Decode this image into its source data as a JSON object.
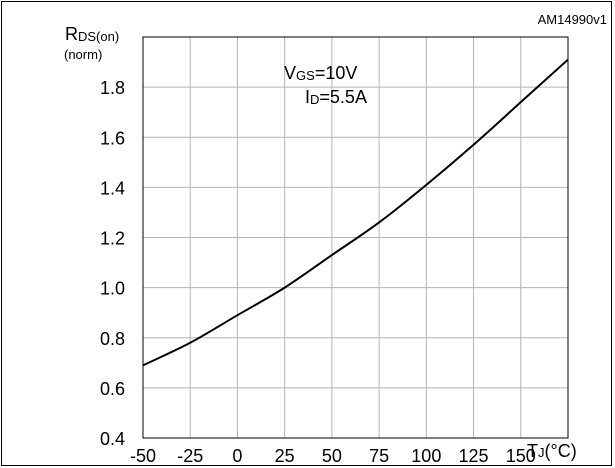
{
  "figure_code": "AM14990v1",
  "chart_data": {
    "type": "line",
    "ylabel_main": "R",
    "ylabel_sub": "DS(on)",
    "ylabel_unit": "(norm)",
    "xlabel_main": "T",
    "xlabel_sub": "J",
    "xlabel_unit": "(°C)",
    "annotation": {
      "vgs_main": "V",
      "vgs_sub": "GS",
      "vgs_value": "=10V",
      "id_main": "I",
      "id_sub": "D",
      "id_value": "=5.5A"
    },
    "xlim": [
      -50,
      175
    ],
    "ylim": [
      0.4,
      2.0
    ],
    "x_ticks": [
      -50,
      -25,
      0,
      25,
      50,
      75,
      100,
      125,
      150
    ],
    "x_tick_labels": [
      "-50",
      "-25",
      "0",
      "25",
      "50",
      "75",
      "100",
      "125",
      "150"
    ],
    "y_ticks": [
      0.4,
      0.6,
      0.8,
      1.0,
      1.2,
      1.4,
      1.6,
      1.8
    ],
    "y_tick_labels": [
      "0.4",
      "0.6",
      "0.8",
      "1.0",
      "1.2",
      "1.4",
      "1.6",
      "1.8"
    ],
    "grid": true,
    "series": [
      {
        "x": [
          -50,
          -25,
          0,
          25,
          50,
          75,
          100,
          125,
          150,
          175
        ],
        "y": [
          0.69,
          0.78,
          0.89,
          1.0,
          1.13,
          1.26,
          1.41,
          1.57,
          1.74,
          1.91
        ]
      }
    ]
  }
}
